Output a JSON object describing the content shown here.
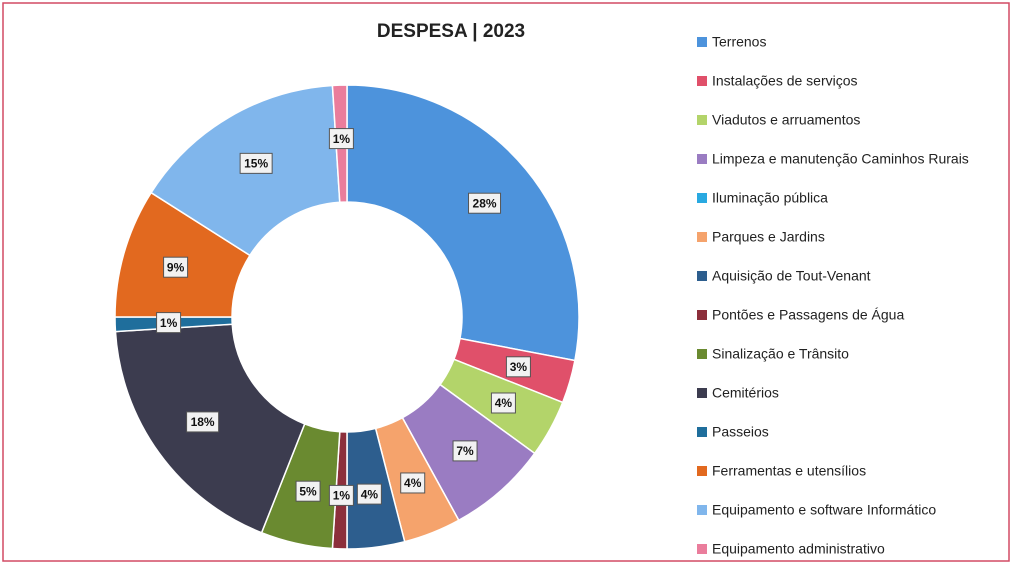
{
  "chart_data": {
    "type": "donut",
    "title": "DESPESA | 2023",
    "categories": [
      "Terrenos",
      "Instalações de serviços",
      "Viadutos e arruamentos",
      "Limpeza e manutenção Caminhos Rurais",
      "Iluminação pública",
      "Parques e Jardins",
      "Aquisição de Tout-Venant",
      "Pontões e Passagens de Água",
      "Sinalização e Trânsito",
      "Cemitérios",
      "Passeios",
      "Ferramentas e utensílios",
      "Equipamento e software Informático",
      "Equipamento administrativo"
    ],
    "values": [
      28,
      3,
      4,
      7,
      0,
      4,
      4,
      1,
      5,
      18,
      1,
      9,
      15,
      1
    ],
    "value_labels": [
      "28%",
      "3%",
      "4%",
      "7%",
      null,
      "4%",
      "4%",
      "1%",
      "5%",
      "18%",
      "1%",
      "9%",
      "15%",
      "1%"
    ],
    "colors": [
      "#4d93dc",
      "#e0506a",
      "#b3d46a",
      "#9a7cc2",
      "#29a9e1",
      "#f5a36c",
      "#2d5e8e",
      "#8c2f3b",
      "#6a8a30",
      "#3c3c4f",
      "#1f6e9c",
      "#e2691f",
      "#80b6ec",
      "#ea7d9c"
    ],
    "legend": "right"
  }
}
